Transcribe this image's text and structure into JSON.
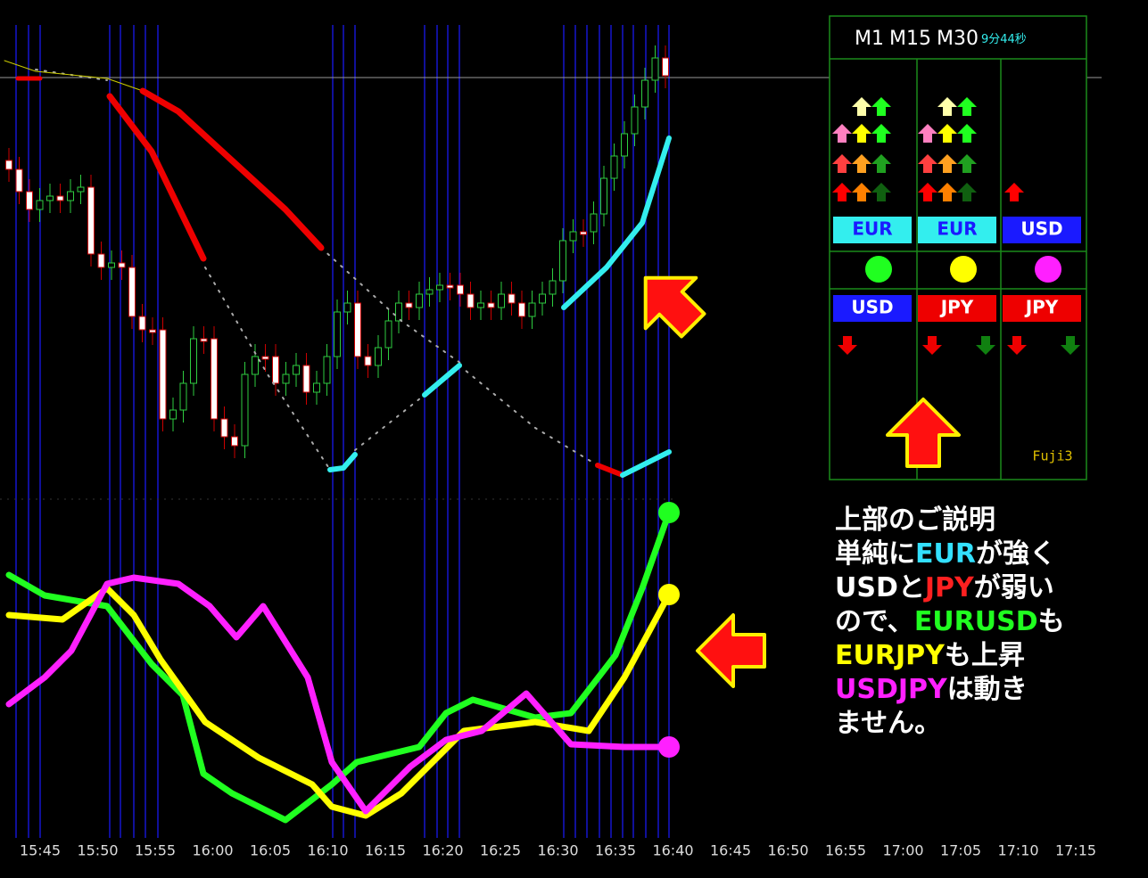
{
  "time_axis": [
    "15:45",
    "15:50",
    "15:55",
    "16:00",
    "16:05",
    "16:10",
    "16:15",
    "16:20",
    "16:25",
    "16:30",
    "16:35",
    "16:40",
    "16:45",
    "16:50",
    "16:55",
    "17:00",
    "17:05",
    "17:10",
    "17:15"
  ],
  "panel": {
    "timeframes": [
      "M1",
      "M15",
      "M30"
    ],
    "countdown": "9分44秒",
    "strong": [
      "EUR",
      "EUR",
      "USD"
    ],
    "weak": [
      "USD",
      "JPY",
      "JPY"
    ],
    "brand": "Fuji3"
  },
  "explanation": [
    [
      {
        "text": "上部のご説明",
        "color": "#ffffff"
      }
    ],
    [
      {
        "text": "単純に",
        "color": "#ffffff"
      },
      {
        "text": "EUR",
        "color": "#33e0ff"
      },
      {
        "text": "が強く",
        "color": "#ffffff"
      }
    ],
    [
      {
        "text": "USD",
        "color": "#ffffff"
      },
      {
        "text": "と",
        "color": "#ffffff"
      },
      {
        "text": "JPY",
        "color": "#ff2020"
      },
      {
        "text": "が弱い",
        "color": "#ffffff"
      }
    ],
    [
      {
        "text": "ので、",
        "color": "#ffffff"
      },
      {
        "text": "EURUSD",
        "color": "#20ff20"
      },
      {
        "text": "も",
        "color": "#ffffff"
      }
    ],
    [
      {
        "text": "EURJPY",
        "color": "#ffff00"
      },
      {
        "text": "も上昇",
        "color": "#ffffff"
      }
    ],
    [
      {
        "text": "USDJPY",
        "color": "#ff20ff"
      },
      {
        "text": "は動き",
        "color": "#ffffff"
      }
    ],
    [
      {
        "text": "ません。",
        "color": "#ffffff"
      }
    ]
  ]
}
